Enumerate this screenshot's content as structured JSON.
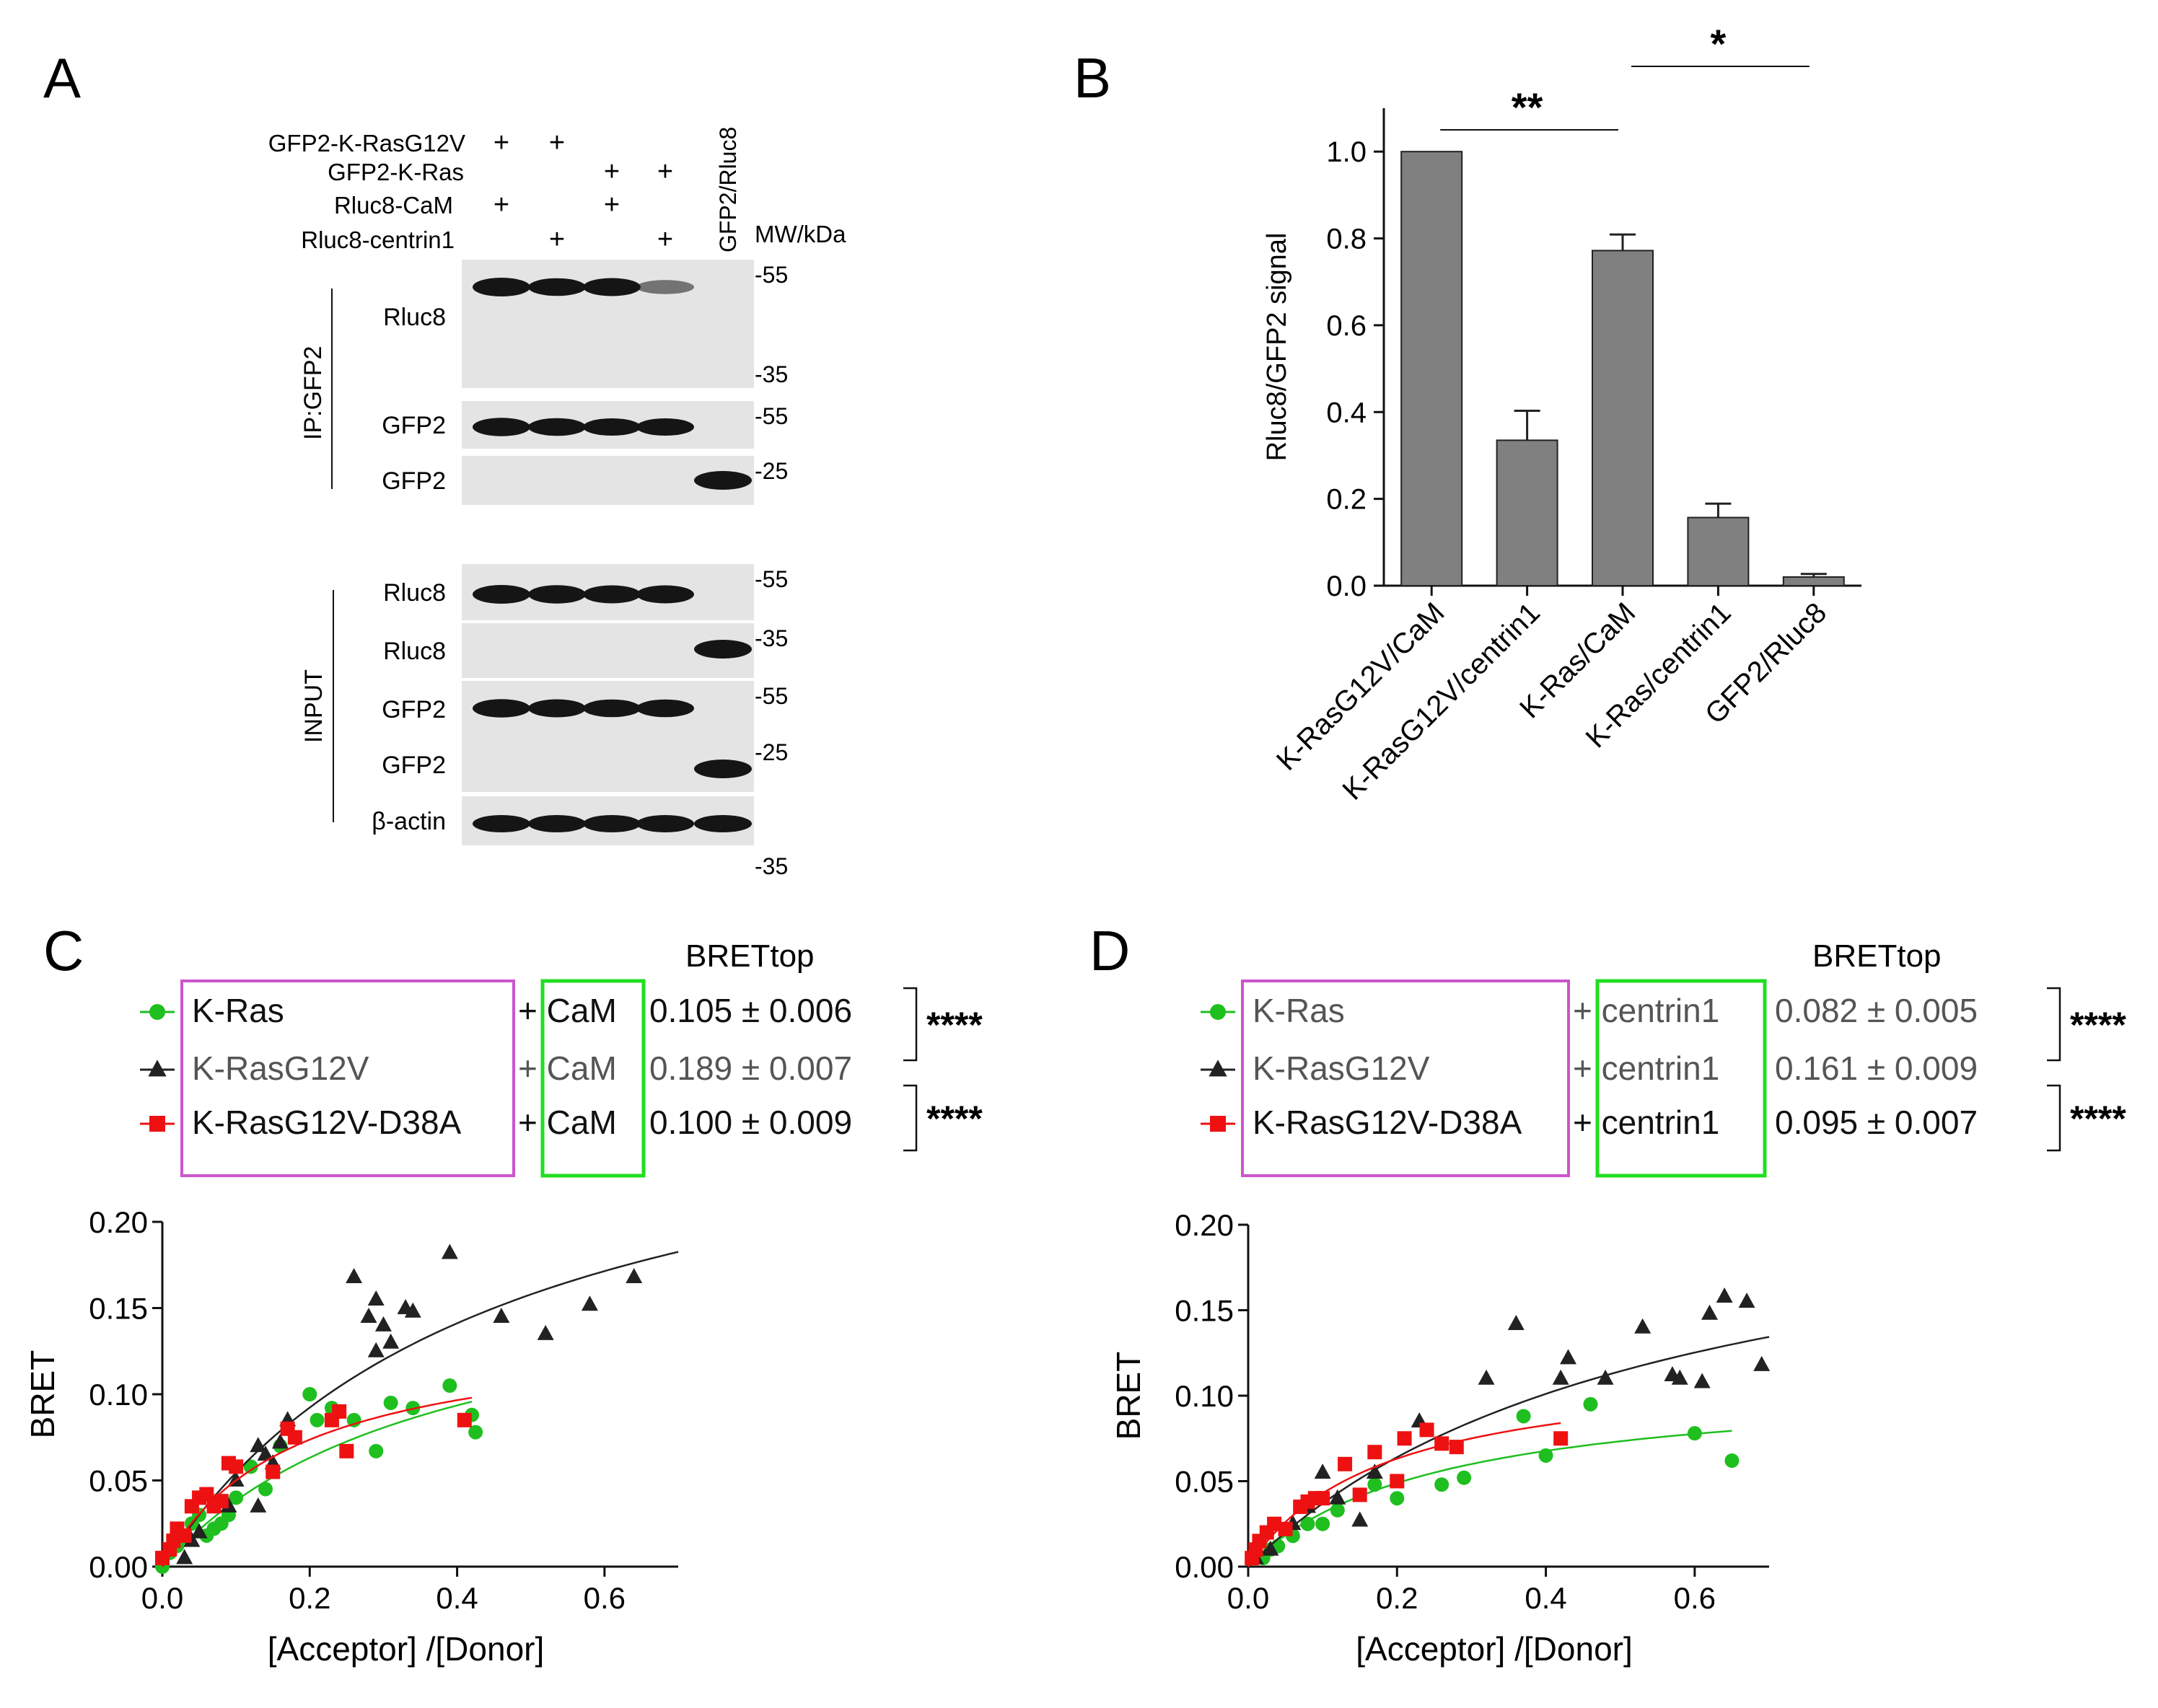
{
  "panels": {
    "A": "A",
    "B": "B",
    "C": "C",
    "D": "D"
  },
  "colors": {
    "gray_bar": "#808080",
    "green": "#1fbf1f",
    "black": "#222222",
    "red": "#ee1111",
    "magenta_box": "#cc55cc",
    "green_box": "#22dd22"
  },
  "blot": {
    "conditions": [
      {
        "label": "GFP2-K-RasG12V",
        "marks": [
          "+",
          "+",
          "",
          "",
          ""
        ]
      },
      {
        "label": "GFP2-K-Ras",
        "marks": [
          "",
          "",
          "+",
          "+",
          ""
        ]
      },
      {
        "label": "Rluc8-CaM",
        "marks": [
          "+",
          "",
          "+",
          "",
          ""
        ]
      },
      {
        "label": "Rluc8-centrin1",
        "marks": [
          "",
          "+",
          "",
          "+",
          ""
        ]
      }
    ],
    "lane5_label": "GFP2/Rluc8",
    "mw_header": "MW/kDa",
    "ip_group": "IP:GFP2",
    "input_group": "INPUT",
    "rows": [
      {
        "label": "Rluc8",
        "mw": [
          "-55",
          "-35"
        ],
        "bands": [
          1,
          0.85,
          0.9,
          0.35,
          0
        ]
      },
      {
        "label": "GFP2",
        "mw": [
          "-55"
        ],
        "bands": [
          0.95,
          0.85,
          0.8,
          0.8,
          0
        ]
      },
      {
        "label": "GFP2",
        "mw": [
          "-25"
        ],
        "bands": [
          0,
          0,
          0,
          0,
          1
        ]
      },
      {
        "label": "Rluc8",
        "mw": [
          "-55"
        ],
        "bands": [
          1,
          0.95,
          0.9,
          0.9,
          0
        ]
      },
      {
        "label": "Rluc8",
        "mw": [
          "-35"
        ],
        "bands": [
          0,
          0,
          0,
          0,
          1
        ]
      },
      {
        "label": "GFP2",
        "mw": [
          "-55"
        ],
        "bands": [
          0.95,
          0.9,
          0.85,
          0.85,
          0
        ]
      },
      {
        "label": "GFP2",
        "mw": [
          "-25"
        ],
        "bands": [
          0,
          0,
          0,
          0,
          1
        ]
      },
      {
        "label": "β-actin",
        "mw": [
          "-35"
        ],
        "bands": [
          0.8,
          0.8,
          0.8,
          0.8,
          0.8
        ]
      }
    ]
  },
  "chart_data": [
    {
      "id": "B",
      "type": "bar",
      "categories": [
        "K-RasG12V/CaM",
        "K-RasG12V/centrin1",
        "K-Ras/CaM",
        "K-Ras/centrin1",
        "GFP2/Rluc8"
      ],
      "values": [
        1.0,
        0.335,
        0.772,
        0.157,
        0.02
      ],
      "errors": [
        0,
        0.068,
        0.037,
        0.032,
        0.007
      ],
      "ylabel": "Rluc8/GFP2 signal",
      "ylim": [
        0,
        1.1
      ],
      "yticks": [
        "0.0",
        "0.2",
        "0.4",
        "0.6",
        "0.8",
        "1.0"
      ],
      "significance": [
        {
          "from": 0,
          "to": 2,
          "label": "**"
        },
        {
          "from": 2,
          "to": 4,
          "label": "*"
        }
      ]
    },
    {
      "id": "C",
      "type": "scatter",
      "title": "BRETtop",
      "xlabel": "[Acceptor] /[Donor]",
      "ylabel": "BRET",
      "xlim": [
        0,
        0.7
      ],
      "ylim": [
        0,
        0.2
      ],
      "xticks": [
        "0.0",
        "0.2",
        "0.4",
        "0.6"
      ],
      "yticks": [
        "0.00",
        "0.05",
        "0.10",
        "0.15",
        "0.20"
      ],
      "partner": "CaM",
      "series": [
        {
          "name": "K-Ras",
          "partner": "+ CaM",
          "brettop": "0.105 ± 0.006",
          "color": "green",
          "marker": "circle",
          "fit": {
            "bmax": 0.18,
            "k": 0.37,
            "xmax": 0.42
          },
          "points": [
            [
              0.0,
              0.0
            ],
            [
              0.01,
              0.008
            ],
            [
              0.02,
              0.012
            ],
            [
              0.03,
              0.018
            ],
            [
              0.04,
              0.025
            ],
            [
              0.05,
              0.03
            ],
            [
              0.06,
              0.018
            ],
            [
              0.07,
              0.022
            ],
            [
              0.08,
              0.025
            ],
            [
              0.09,
              0.03
            ],
            [
              0.1,
              0.04
            ],
            [
              0.12,
              0.058
            ],
            [
              0.14,
              0.045
            ],
            [
              0.16,
              0.07
            ],
            [
              0.2,
              0.1
            ],
            [
              0.21,
              0.085
            ],
            [
              0.23,
              0.092
            ],
            [
              0.26,
              0.085
            ],
            [
              0.29,
              0.067
            ],
            [
              0.31,
              0.095
            ],
            [
              0.34,
              0.092
            ],
            [
              0.39,
              0.105
            ],
            [
              0.42,
              0.088
            ],
            [
              0.425,
              0.078
            ]
          ]
        },
        {
          "name": "K-RasG12V",
          "partner": "+ CaM",
          "brettop": "0.189 ± 0.007",
          "color": "black",
          "marker": "triangle",
          "fit": {
            "bmax": 0.3,
            "k": 0.45,
            "xmax": 0.7
          },
          "points": [
            [
              0.03,
              0.005
            ],
            [
              0.04,
              0.015
            ],
            [
              0.05,
              0.02
            ],
            [
              0.09,
              0.035
            ],
            [
              0.1,
              0.05
            ],
            [
              0.13,
              0.035
            ],
            [
              0.13,
              0.07
            ],
            [
              0.14,
              0.065
            ],
            [
              0.15,
              0.06
            ],
            [
              0.16,
              0.072
            ],
            [
              0.17,
              0.085
            ],
            [
              0.26,
              0.168
            ],
            [
              0.28,
              0.145
            ],
            [
              0.29,
              0.125
            ],
            [
              0.29,
              0.155
            ],
            [
              0.3,
              0.14
            ],
            [
              0.31,
              0.13
            ],
            [
              0.33,
              0.15
            ],
            [
              0.34,
              0.148
            ],
            [
              0.39,
              0.182
            ],
            [
              0.46,
              0.145
            ],
            [
              0.52,
              0.135
            ],
            [
              0.58,
              0.152
            ],
            [
              0.64,
              0.168
            ]
          ]
        },
        {
          "name": "K-RasG12V-D38A",
          "partner": "+ CaM",
          "brettop": "0.100 ± 0.009",
          "color": "red",
          "marker": "square",
          "fit": {
            "bmax": 0.14,
            "k": 0.18,
            "xmax": 0.42
          },
          "points": [
            [
              0.0,
              0.005
            ],
            [
              0.01,
              0.01
            ],
            [
              0.015,
              0.015
            ],
            [
              0.02,
              0.022
            ],
            [
              0.03,
              0.018
            ],
            [
              0.04,
              0.035
            ],
            [
              0.05,
              0.04
            ],
            [
              0.06,
              0.042
            ],
            [
              0.07,
              0.035
            ],
            [
              0.08,
              0.038
            ],
            [
              0.09,
              0.06
            ],
            [
              0.1,
              0.058
            ],
            [
              0.15,
              0.055
            ],
            [
              0.17,
              0.08
            ],
            [
              0.18,
              0.075
            ],
            [
              0.23,
              0.085
            ],
            [
              0.24,
              0.09
            ],
            [
              0.25,
              0.067
            ],
            [
              0.41,
              0.085
            ]
          ]
        }
      ],
      "stats": [
        "****",
        "****"
      ]
    },
    {
      "id": "D",
      "type": "scatter",
      "title": "BRETtop",
      "xlabel": "[Acceptor] /[Donor]",
      "ylabel": "BRET",
      "xlim": [
        0,
        0.7
      ],
      "ylim": [
        0,
        0.2
      ],
      "xticks": [
        "0.0",
        "0.2",
        "0.4",
        "0.6"
      ],
      "yticks": [
        "0.00",
        "0.05",
        "0.10",
        "0.15",
        "0.20"
      ],
      "partner": "centrin1",
      "series": [
        {
          "name": "K-Ras",
          "partner": "+ centrin1",
          "brettop": "0.082 ± 0.005",
          "color": "green",
          "marker": "circle",
          "fit": {
            "bmax": 0.11,
            "k": 0.25,
            "xmax": 0.65
          },
          "points": [
            [
              0.02,
              0.005
            ],
            [
              0.03,
              0.01
            ],
            [
              0.04,
              0.012
            ],
            [
              0.06,
              0.018
            ],
            [
              0.08,
              0.025
            ],
            [
              0.1,
              0.025
            ],
            [
              0.12,
              0.033
            ],
            [
              0.17,
              0.048
            ],
            [
              0.2,
              0.04
            ],
            [
              0.26,
              0.048
            ],
            [
              0.29,
              0.052
            ],
            [
              0.37,
              0.088
            ],
            [
              0.4,
              0.065
            ],
            [
              0.46,
              0.095
            ],
            [
              0.6,
              0.078
            ],
            [
              0.65,
              0.062
            ]
          ]
        },
        {
          "name": "K-RasG12V",
          "partner": "+ centrin1",
          "brettop": "0.161 ± 0.009",
          "color": "black",
          "marker": "triangle",
          "fit": {
            "bmax": 0.24,
            "k": 0.55,
            "xmax": 0.7
          },
          "points": [
            [
              0.01,
              0.005
            ],
            [
              0.03,
              0.01
            ],
            [
              0.06,
              0.025
            ],
            [
              0.08,
              0.035
            ],
            [
              0.1,
              0.055
            ],
            [
              0.12,
              0.04
            ],
            [
              0.15,
              0.027
            ],
            [
              0.17,
              0.055
            ],
            [
              0.23,
              0.085
            ],
            [
              0.32,
              0.11
            ],
            [
              0.36,
              0.142
            ],
            [
              0.42,
              0.11
            ],
            [
              0.43,
              0.122
            ],
            [
              0.48,
              0.11
            ],
            [
              0.53,
              0.14
            ],
            [
              0.57,
              0.112
            ],
            [
              0.58,
              0.11
            ],
            [
              0.61,
              0.108
            ],
            [
              0.62,
              0.148
            ],
            [
              0.64,
              0.158
            ],
            [
              0.67,
              0.155
            ],
            [
              0.69,
              0.118
            ]
          ]
        },
        {
          "name": "K-RasG12V-D38A",
          "partner": "+ centrin1",
          "brettop": "0.095 ± 0.007",
          "color": "red",
          "marker": "square",
          "fit": {
            "bmax": 0.12,
            "k": 0.18,
            "xmax": 0.42
          },
          "points": [
            [
              0.005,
              0.005
            ],
            [
              0.01,
              0.01
            ],
            [
              0.015,
              0.015
            ],
            [
              0.025,
              0.02
            ],
            [
              0.035,
              0.025
            ],
            [
              0.05,
              0.022
            ],
            [
              0.07,
              0.035
            ],
            [
              0.08,
              0.038
            ],
            [
              0.09,
              0.04
            ],
            [
              0.1,
              0.04
            ],
            [
              0.13,
              0.06
            ],
            [
              0.15,
              0.042
            ],
            [
              0.17,
              0.067
            ],
            [
              0.2,
              0.05
            ],
            [
              0.21,
              0.075
            ],
            [
              0.24,
              0.08
            ],
            [
              0.26,
              0.072
            ],
            [
              0.28,
              0.07
            ],
            [
              0.42,
              0.075
            ]
          ]
        }
      ],
      "stats": [
        "****",
        "****"
      ]
    }
  ]
}
